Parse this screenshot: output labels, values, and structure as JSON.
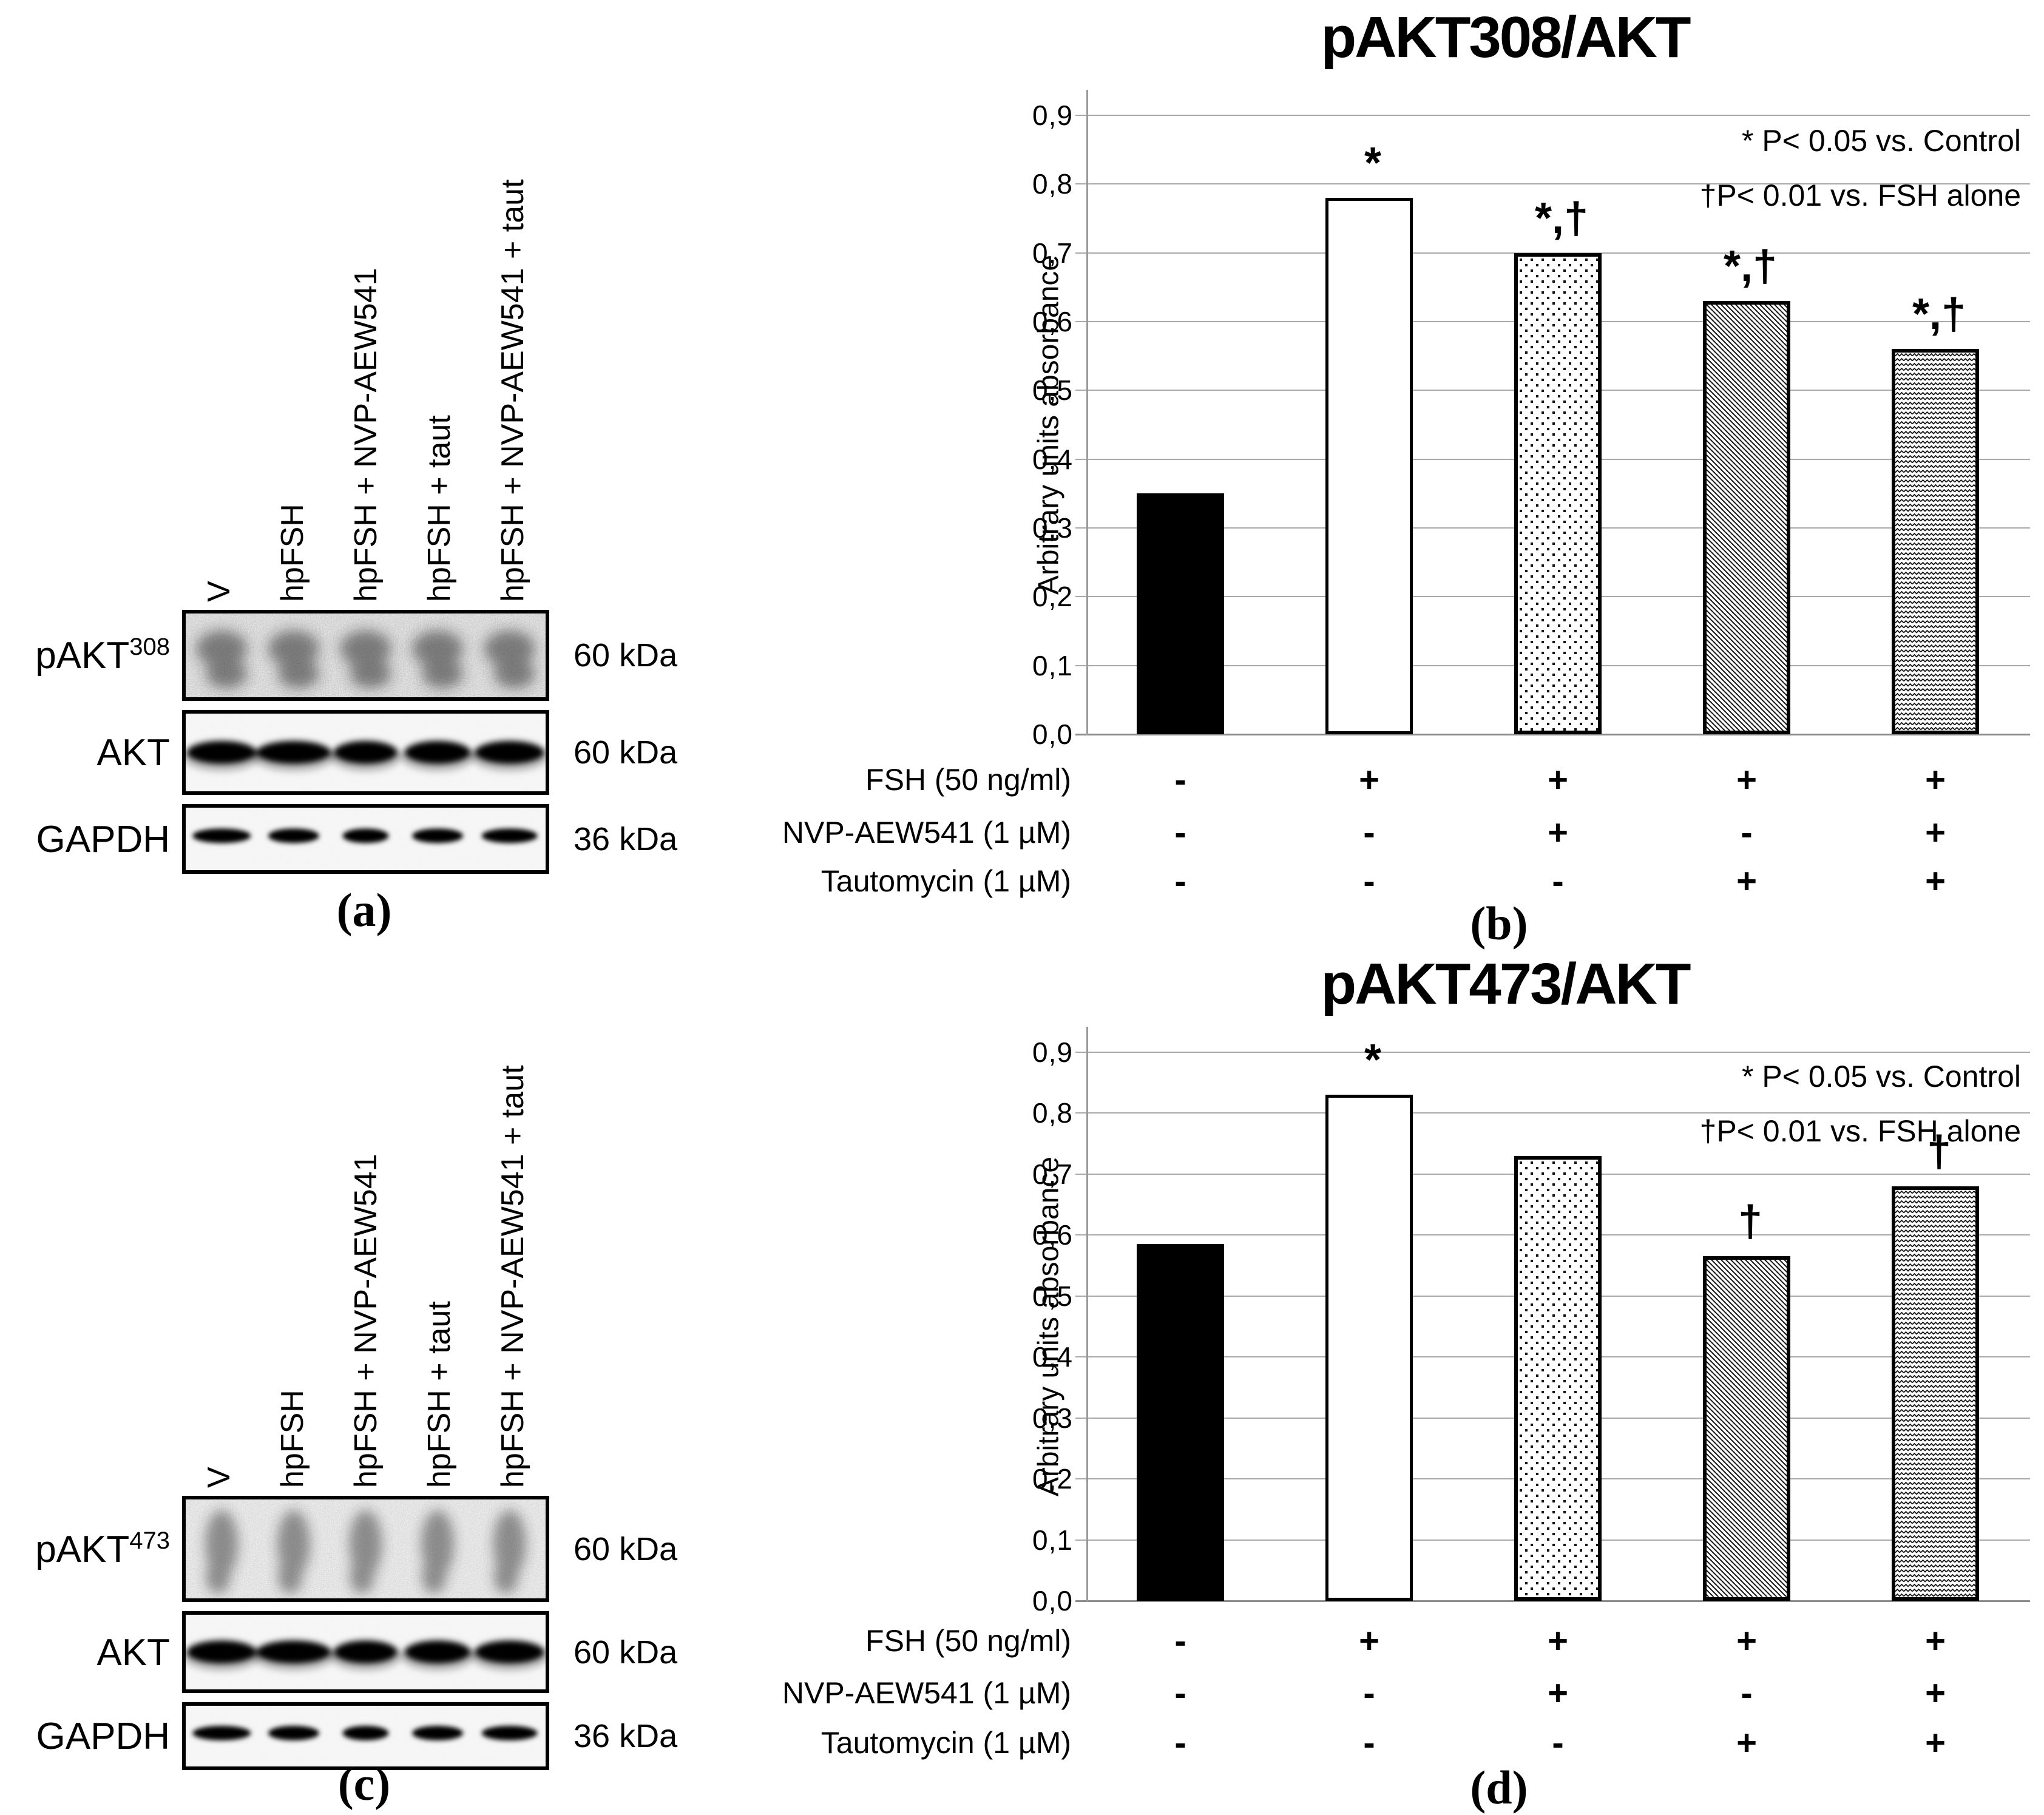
{
  "chart_data": [
    {
      "type": "bar",
      "title": "pAKT308/AKT",
      "ylabel": "Arbitrary units absorbance",
      "ylim": [
        0.0,
        0.9
      ],
      "grid": true,
      "ytick_labels": [
        "0,0",
        "0,1",
        "0,2",
        "0,3",
        "0,4",
        "0,5",
        "0,6",
        "0,7",
        "0,8",
        "0,9"
      ],
      "legend_lines": [
        "* P< 0.05 vs. Control",
        "†P< 0.01 vs. FSH alone"
      ],
      "values": [
        0.35,
        0.78,
        0.7,
        0.63,
        0.56
      ],
      "annotations": [
        "",
        "*",
        "*,†",
        "*,†",
        "*,†"
      ],
      "bar_styles": [
        "solid-black",
        "white",
        "dots",
        "diagonal",
        "zigzag"
      ],
      "condition_rows": [
        {
          "label": "FSH (50 ng/ml)",
          "values": [
            "-",
            "+",
            "+",
            "+",
            "+"
          ]
        },
        {
          "label": "NVP-AEW541 (1 µM)",
          "values": [
            "-",
            "-",
            "+",
            "-",
            "+"
          ]
        },
        {
          "label": "Tautomycin (1 µM)",
          "values": [
            "-",
            "-",
            "-",
            "+",
            "+"
          ]
        }
      ],
      "caption": "(b)"
    },
    {
      "type": "bar",
      "title": "pAKT473/AKT",
      "ylabel": "Arbitrary units absorbance",
      "ylim": [
        0.0,
        0.9
      ],
      "grid": true,
      "ytick_labels": [
        "0,0",
        "0,1",
        "0,2",
        "0,3",
        "0,4",
        "0,5",
        "0,6",
        "0,7",
        "0,8",
        "0,9"
      ],
      "legend_lines": [
        "* P< 0.05 vs. Control",
        "†P< 0.01 vs. FSH alone"
      ],
      "values": [
        0.585,
        0.83,
        0.73,
        0.565,
        0.68
      ],
      "annotations": [
        "",
        "*",
        "",
        "†",
        "†"
      ],
      "bar_styles": [
        "solid-black",
        "white",
        "dots",
        "diagonal",
        "zigzag"
      ],
      "condition_rows": [
        {
          "label": "FSH (50 ng/ml)",
          "values": [
            "-",
            "+",
            "+",
            "+",
            "+"
          ]
        },
        {
          "label": "NVP-AEW541 (1 µM)",
          "values": [
            "-",
            "-",
            "+",
            "-",
            "+"
          ]
        },
        {
          "label": "Tautomycin (1 µM)",
          "values": [
            "-",
            "-",
            "-",
            "+",
            "+"
          ]
        }
      ],
      "caption": "(d)"
    }
  ],
  "panels": [
    {
      "caption": "(a)",
      "lanes": [
        "V",
        "hpFSH",
        "hpFSH + NVP-AEW541",
        "hpFSH + taut",
        "hpFSH + NVP-AEW541 + taut"
      ],
      "rows": [
        {
          "label": "pAKT",
          "sup": "308",
          "kda": "60 kDa"
        },
        {
          "label": "AKT",
          "sup": "",
          "kda": "60 kDa"
        },
        {
          "label": "GAPDH",
          "sup": "",
          "kda": "36 kDa"
        }
      ]
    },
    {
      "caption": "(c)",
      "lanes": [
        "V",
        "hpFSH",
        "hpFSH + NVP-AEW541",
        "hpFSH + taut",
        "hpFSH + NVP-AEW541 + taut"
      ],
      "rows": [
        {
          "label": "pAKT",
          "sup": "473",
          "kda": "60 kDa"
        },
        {
          "label": "AKT",
          "sup": "",
          "kda": "60 kDa"
        },
        {
          "label": "GAPDH",
          "sup": "",
          "kda": "36 kDa"
        }
      ]
    }
  ]
}
